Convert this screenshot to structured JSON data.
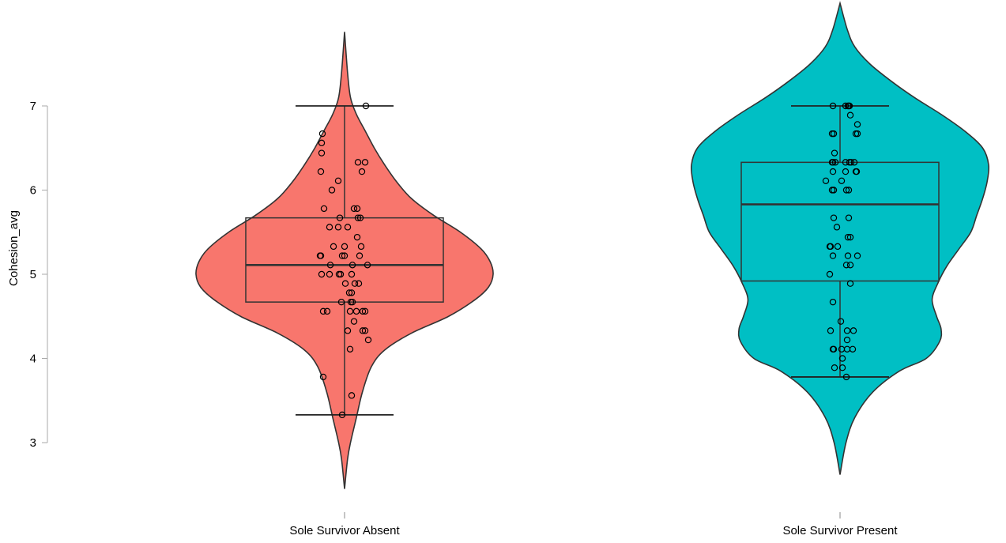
{
  "chart_data": {
    "type": "violin",
    "title": "",
    "xlabel": "",
    "ylabel": "Cohesion_avg",
    "ylim": [
      2.4,
      8.3
    ],
    "yticks": [
      3,
      4,
      5,
      6,
      7
    ],
    "grid": false,
    "legend": "none",
    "categories": [
      "Sole Survivor Absent",
      "Sole Survivor Present"
    ],
    "groups": [
      {
        "category": "Sole Survivor Absent",
        "color": "#f8766d",
        "violin_range": [
          2.45,
          7.88
        ],
        "violin_profile": [
          [
            2.45,
            0.0
          ],
          [
            2.8,
            0.02
          ],
          [
            3.0,
            0.04
          ],
          [
            3.3,
            0.08
          ],
          [
            3.6,
            0.12
          ],
          [
            3.9,
            0.18
          ],
          [
            4.1,
            0.27
          ],
          [
            4.3,
            0.45
          ],
          [
            4.5,
            0.7
          ],
          [
            4.7,
            0.88
          ],
          [
            4.85,
            0.97
          ],
          [
            5.0,
            1.0
          ],
          [
            5.15,
            0.98
          ],
          [
            5.3,
            0.92
          ],
          [
            5.5,
            0.78
          ],
          [
            5.7,
            0.6
          ],
          [
            5.9,
            0.45
          ],
          [
            6.1,
            0.35
          ],
          [
            6.3,
            0.27
          ],
          [
            6.5,
            0.2
          ],
          [
            6.7,
            0.14
          ],
          [
            6.9,
            0.08
          ],
          [
            7.1,
            0.04
          ],
          [
            7.4,
            0.02
          ],
          [
            7.88,
            0.0
          ]
        ],
        "box": {
          "min": 3.33,
          "q1": 4.67,
          "median": 5.11,
          "q3": 5.67,
          "max": 7.0
        },
        "points": [
          [
            0.27,
            7.0
          ],
          [
            -0.28,
            6.67
          ],
          [
            -0.29,
            6.56
          ],
          [
            -0.29,
            6.44
          ],
          [
            0.17,
            6.33
          ],
          [
            0.26,
            6.33
          ],
          [
            -0.3,
            6.22
          ],
          [
            0.22,
            6.22
          ],
          [
            -0.08,
            6.11
          ],
          [
            -0.16,
            6.0
          ],
          [
            -0.26,
            5.78
          ],
          [
            0.12,
            5.78
          ],
          [
            0.16,
            5.78
          ],
          [
            -0.06,
            5.67
          ],
          [
            0.17,
            5.67
          ],
          [
            0.2,
            5.67
          ],
          [
            -0.19,
            5.56
          ],
          [
            -0.08,
            5.56
          ],
          [
            0.04,
            5.56
          ],
          [
            0.16,
            5.44
          ],
          [
            -0.14,
            5.33
          ],
          [
            0.0,
            5.33
          ],
          [
            0.21,
            5.33
          ],
          [
            -0.31,
            5.22
          ],
          [
            -0.3,
            5.22
          ],
          [
            -0.03,
            5.22
          ],
          [
            0.0,
            5.22
          ],
          [
            0.19,
            5.22
          ],
          [
            -0.18,
            5.11
          ],
          [
            0.1,
            5.11
          ],
          [
            0.29,
            5.11
          ],
          [
            -0.29,
            5.0
          ],
          [
            -0.19,
            5.0
          ],
          [
            -0.07,
            5.0
          ],
          [
            -0.05,
            5.0
          ],
          [
            0.09,
            5.0
          ],
          [
            0.01,
            4.89
          ],
          [
            0.13,
            4.89
          ],
          [
            0.18,
            4.89
          ],
          [
            0.06,
            4.78
          ],
          [
            0.09,
            4.78
          ],
          [
            -0.04,
            4.67
          ],
          [
            0.08,
            4.67
          ],
          [
            0.1,
            4.67
          ],
          [
            -0.27,
            4.56
          ],
          [
            -0.22,
            4.56
          ],
          [
            0.07,
            4.56
          ],
          [
            0.15,
            4.56
          ],
          [
            0.23,
            4.56
          ],
          [
            0.26,
            4.56
          ],
          [
            0.12,
            4.44
          ],
          [
            0.04,
            4.33
          ],
          [
            0.23,
            4.33
          ],
          [
            0.26,
            4.33
          ],
          [
            0.3,
            4.22
          ],
          [
            0.07,
            4.11
          ],
          [
            -0.27,
            3.78
          ],
          [
            0.09,
            3.56
          ],
          [
            -0.03,
            3.33
          ]
        ]
      },
      {
        "category": "Sole Survivor Present",
        "color": "#00bfc4",
        "violin_range": [
          2.62,
          8.22
        ],
        "violin_profile": [
          [
            2.62,
            0.0
          ],
          [
            3.0,
            0.04
          ],
          [
            3.3,
            0.1
          ],
          [
            3.6,
            0.22
          ],
          [
            3.85,
            0.4
          ],
          [
            4.0,
            0.58
          ],
          [
            4.2,
            0.67
          ],
          [
            4.35,
            0.68
          ],
          [
            4.5,
            0.65
          ],
          [
            4.7,
            0.62
          ],
          [
            4.9,
            0.66
          ],
          [
            5.1,
            0.72
          ],
          [
            5.3,
            0.8
          ],
          [
            5.5,
            0.88
          ],
          [
            5.7,
            0.92
          ],
          [
            5.9,
            0.96
          ],
          [
            6.1,
            0.99
          ],
          [
            6.3,
            1.0
          ],
          [
            6.5,
            0.96
          ],
          [
            6.7,
            0.84
          ],
          [
            6.9,
            0.68
          ],
          [
            7.1,
            0.5
          ],
          [
            7.3,
            0.34
          ],
          [
            7.5,
            0.2
          ],
          [
            7.7,
            0.1
          ],
          [
            7.9,
            0.05
          ],
          [
            8.22,
            0.0
          ]
        ],
        "box": {
          "min": 3.78,
          "q1": 4.92,
          "median": 5.83,
          "q3": 6.33,
          "max": 7.0
        },
        "points": [
          [
            -0.09,
            7.0
          ],
          [
            0.07,
            7.0
          ],
          [
            0.1,
            7.0
          ],
          [
            0.11,
            7.0
          ],
          [
            0.12,
            7.0
          ],
          [
            0.13,
            6.89
          ],
          [
            0.22,
            6.78
          ],
          [
            -0.1,
            6.67
          ],
          [
            -0.08,
            6.67
          ],
          [
            0.2,
            6.67
          ],
          [
            0.22,
            6.67
          ],
          [
            -0.07,
            6.44
          ],
          [
            -0.1,
            6.33
          ],
          [
            -0.09,
            6.33
          ],
          [
            -0.06,
            6.33
          ],
          [
            0.07,
            6.33
          ],
          [
            0.12,
            6.33
          ],
          [
            0.14,
            6.33
          ],
          [
            0.18,
            6.33
          ],
          [
            -0.09,
            6.22
          ],
          [
            0.07,
            6.22
          ],
          [
            0.2,
            6.22
          ],
          [
            0.21,
            6.22
          ],
          [
            -0.18,
            6.11
          ],
          [
            0.02,
            6.11
          ],
          [
            -0.1,
            6.0
          ],
          [
            -0.08,
            6.0
          ],
          [
            0.08,
            6.0
          ],
          [
            0.11,
            6.0
          ],
          [
            -0.08,
            5.67
          ],
          [
            0.11,
            5.67
          ],
          [
            -0.04,
            5.56
          ],
          [
            0.1,
            5.44
          ],
          [
            0.13,
            5.44
          ],
          [
            -0.13,
            5.33
          ],
          [
            -0.12,
            5.33
          ],
          [
            -0.03,
            5.33
          ],
          [
            -0.09,
            5.22
          ],
          [
            0.1,
            5.22
          ],
          [
            0.22,
            5.22
          ],
          [
            0.08,
            5.11
          ],
          [
            0.13,
            5.11
          ],
          [
            -0.13,
            5.0
          ],
          [
            0.13,
            4.89
          ],
          [
            -0.09,
            4.67
          ],
          [
            0.01,
            4.44
          ],
          [
            -0.12,
            4.33
          ],
          [
            0.09,
            4.33
          ],
          [
            0.17,
            4.33
          ],
          [
            0.09,
            4.22
          ],
          [
            -0.09,
            4.11
          ],
          [
            -0.08,
            4.11
          ],
          [
            0.02,
            4.11
          ],
          [
            0.09,
            4.11
          ],
          [
            0.16,
            4.11
          ],
          [
            0.03,
            4.0
          ],
          [
            -0.07,
            3.89
          ],
          [
            0.03,
            3.89
          ],
          [
            0.08,
            3.78
          ]
        ]
      }
    ]
  }
}
